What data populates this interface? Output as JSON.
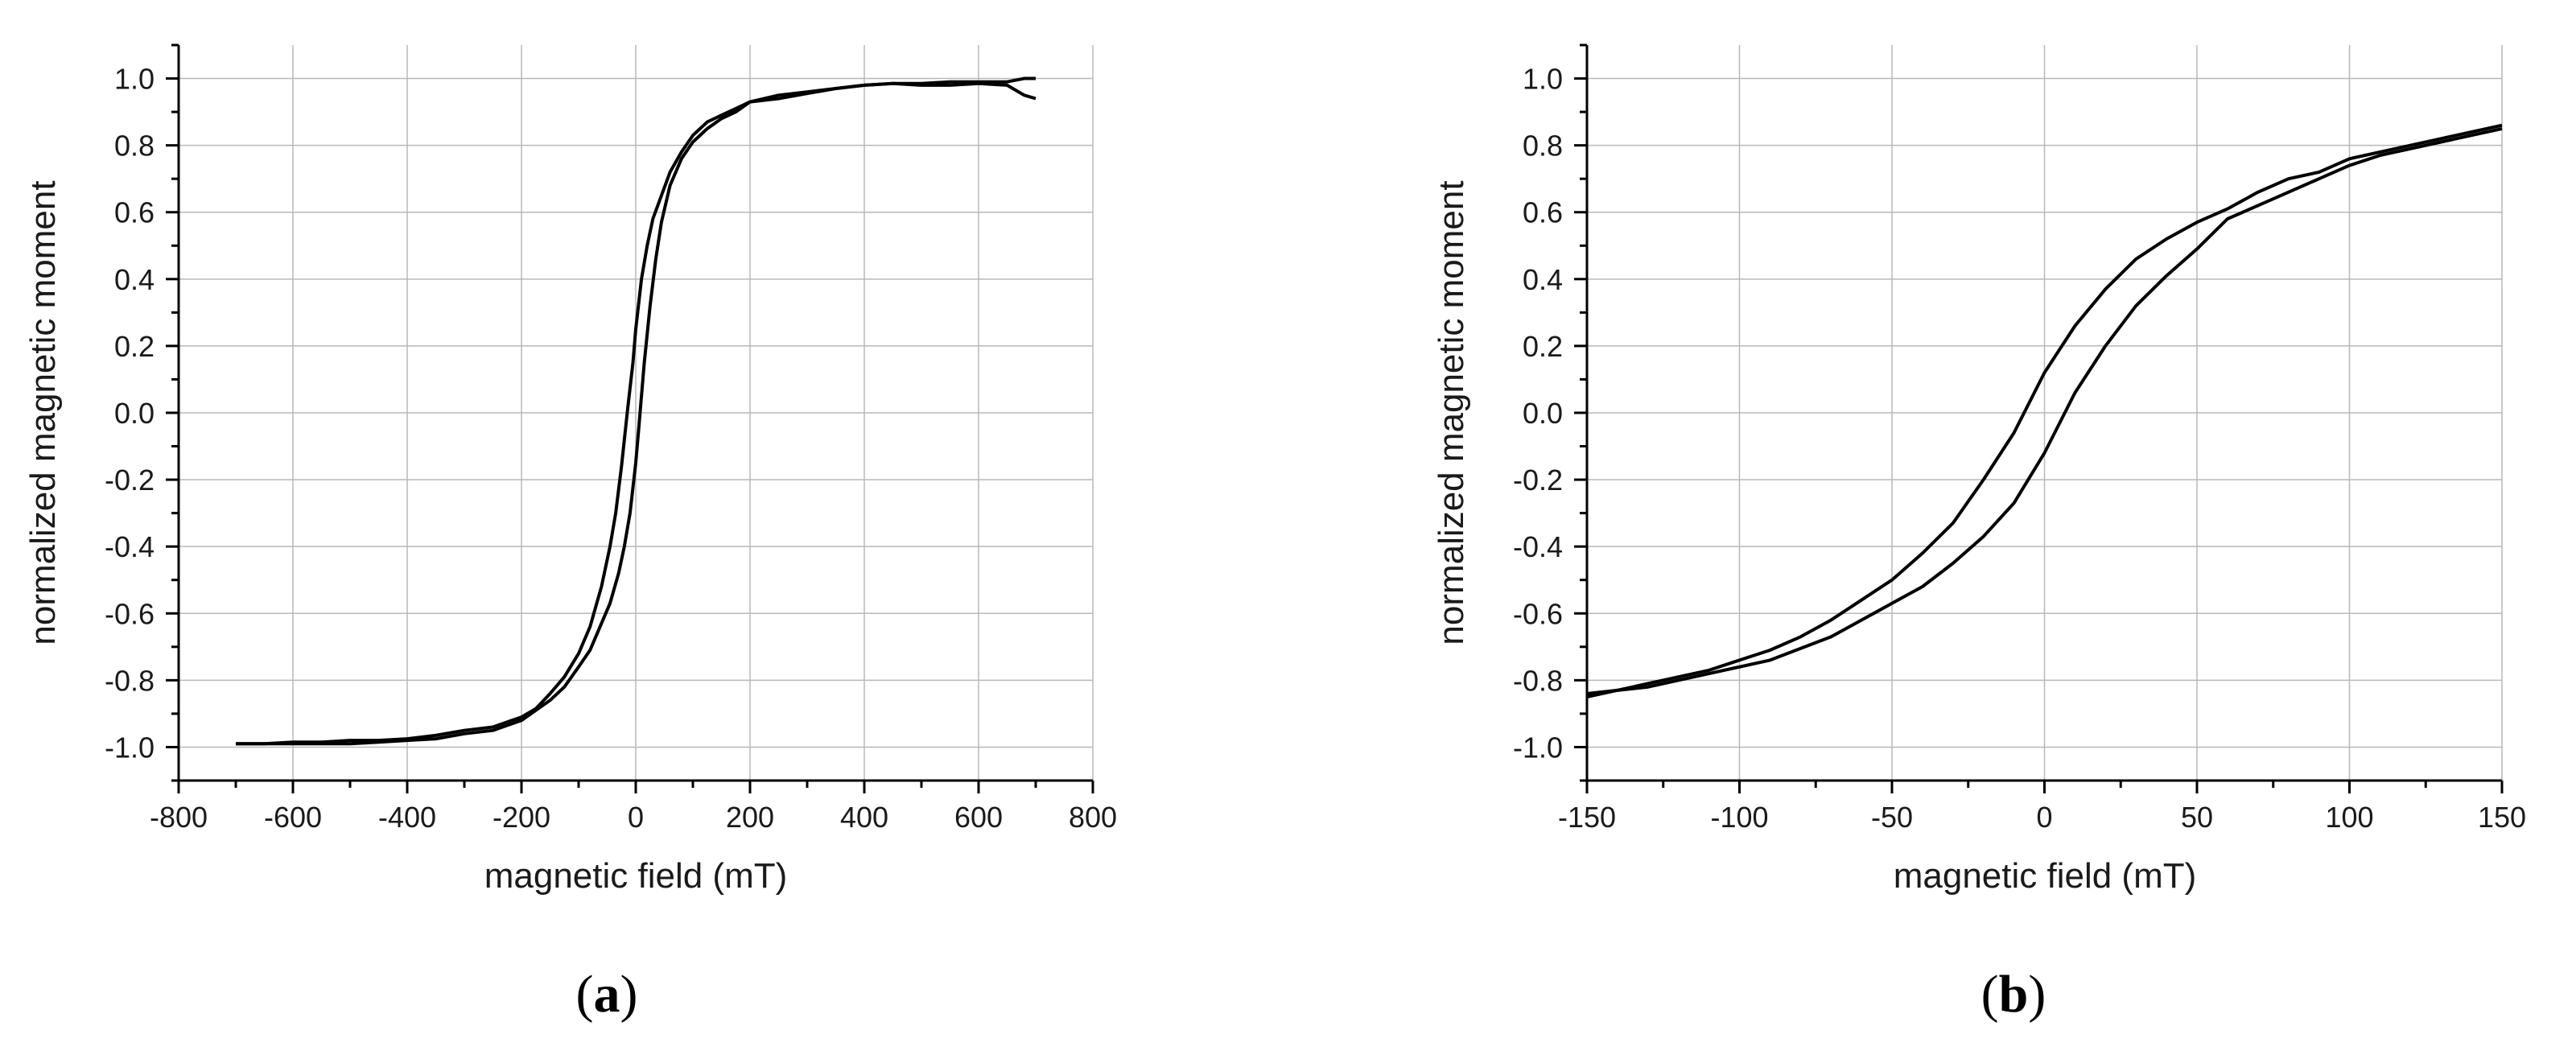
{
  "chart_data": [
    {
      "type": "line",
      "panel_label": "(a)",
      "panel_letter": "a",
      "xlabel": "magnetic field (mT)",
      "ylabel": "normalized magnetic moment",
      "xlim": [
        -800,
        800
      ],
      "ylim": [
        -1.1,
        1.1
      ],
      "grid": true,
      "x_ticks": [
        -800,
        -600,
        -400,
        -200,
        0,
        200,
        400,
        600,
        800
      ],
      "x_tick_labels": [
        "-800",
        "-600",
        "-400",
        "-200",
        "0",
        "200",
        "400",
        "600",
        "800"
      ],
      "y_ticks": [
        1.0,
        0.8,
        0.6,
        0.4,
        0.2,
        0.0,
        -0.2,
        -0.4,
        -0.6,
        -0.8,
        -1.0
      ],
      "y_tick_labels": [
        "1.0",
        "0.8",
        "0.6",
        "0.4",
        "0.2",
        "0.0",
        "-0.2",
        "-0.4",
        "-0.6",
        "-0.8",
        "-1.0"
      ],
      "series": [
        {
          "x": [
            -700,
            -650,
            -600,
            -550,
            -500,
            -450,
            -400,
            -350,
            -300,
            -250,
            -200,
            -175,
            -150,
            -125,
            -100,
            -80,
            -60,
            -45,
            -35,
            -25,
            -15,
            -5,
            0,
            10,
            20,
            30,
            45,
            60,
            80,
            100,
            125,
            150,
            175,
            200,
            250,
            300,
            350,
            400,
            450,
            500,
            550,
            600,
            650,
            680,
            700
          ],
          "y": [
            -0.99,
            -0.99,
            -0.985,
            -0.985,
            -0.98,
            -0.98,
            -0.975,
            -0.965,
            -0.95,
            -0.94,
            -0.91,
            -0.885,
            -0.84,
            -0.79,
            -0.72,
            -0.64,
            -0.52,
            -0.4,
            -0.3,
            -0.16,
            0.0,
            0.15,
            0.25,
            0.4,
            0.5,
            0.58,
            0.65,
            0.72,
            0.78,
            0.83,
            0.87,
            0.89,
            0.91,
            0.93,
            0.95,
            0.96,
            0.97,
            0.98,
            0.985,
            0.985,
            0.99,
            0.99,
            0.99,
            1.0,
            1.0
          ]
        },
        {
          "x": [
            700,
            680,
            650,
            600,
            550,
            500,
            450,
            400,
            350,
            300,
            250,
            200,
            175,
            150,
            125,
            100,
            80,
            60,
            45,
            35,
            25,
            15,
            5,
            0,
            -10,
            -20,
            -30,
            -45,
            -60,
            -80,
            -100,
            -125,
            -150,
            -175,
            -200,
            -250,
            -300,
            -350,
            -400,
            -450,
            -500,
            -550,
            -600,
            -650,
            -700
          ],
          "y": [
            0.94,
            0.95,
            0.98,
            0.985,
            0.98,
            0.98,
            0.985,
            0.98,
            0.97,
            0.955,
            0.94,
            0.93,
            0.9,
            0.88,
            0.85,
            0.81,
            0.76,
            0.68,
            0.57,
            0.46,
            0.32,
            0.15,
            -0.05,
            -0.15,
            -0.3,
            -0.4,
            -0.48,
            -0.57,
            -0.63,
            -0.71,
            -0.76,
            -0.82,
            -0.86,
            -0.89,
            -0.92,
            -0.95,
            -0.96,
            -0.975,
            -0.98,
            -0.985,
            -0.99,
            -0.99,
            -0.99,
            -0.99,
            -0.99
          ]
        }
      ]
    },
    {
      "type": "line",
      "panel_label": "(b)",
      "panel_letter": "b",
      "xlabel": "magnetic field (mT)",
      "ylabel": "normalized magnetic moment",
      "xlim": [
        -150,
        150
      ],
      "ylim": [
        -1.1,
        1.1
      ],
      "grid": true,
      "x_ticks": [
        -150,
        -100,
        -50,
        0,
        50,
        100,
        150
      ],
      "x_tick_labels": [
        "-150",
        "-100",
        "-50",
        "0",
        "50",
        "100",
        "150"
      ],
      "y_ticks": [
        1.0,
        0.8,
        0.6,
        0.4,
        0.2,
        0.0,
        -0.2,
        -0.4,
        -0.6,
        -0.8,
        -1.0
      ],
      "y_tick_labels": [
        "1.0",
        "0.8",
        "0.6",
        "0.4",
        "0.2",
        "0.0",
        "-0.2",
        "-0.4",
        "-0.6",
        "-0.8",
        "-1.0"
      ],
      "series": [
        {
          "x": [
            -150,
            -130,
            -110,
            -90,
            -70,
            -50,
            -40,
            -30,
            -20,
            -10,
            0,
            10,
            20,
            30,
            40,
            50,
            60,
            70,
            80,
            90,
            100,
            110,
            120,
            130,
            140,
            150
          ],
          "y": [
            -0.84,
            -0.82,
            -0.78,
            -0.74,
            -0.67,
            -0.57,
            -0.52,
            -0.45,
            -0.37,
            -0.27,
            -0.12,
            0.06,
            0.2,
            0.32,
            0.41,
            0.49,
            0.58,
            0.62,
            0.66,
            0.7,
            0.74,
            0.77,
            0.79,
            0.81,
            0.83,
            0.85
          ]
        },
        {
          "x": [
            150,
            130,
            110,
            100,
            90,
            80,
            70,
            60,
            50,
            40,
            30,
            20,
            10,
            0,
            -10,
            -20,
            -30,
            -40,
            -50,
            -60,
            -70,
            -80,
            -90,
            -100,
            -110,
            -130,
            -150
          ],
          "y": [
            0.86,
            0.82,
            0.78,
            0.76,
            0.72,
            0.7,
            0.66,
            0.61,
            0.57,
            0.52,
            0.46,
            0.37,
            0.26,
            0.12,
            -0.06,
            -0.2,
            -0.33,
            -0.42,
            -0.5,
            -0.56,
            -0.62,
            -0.67,
            -0.71,
            -0.74,
            -0.77,
            -0.81,
            -0.85
          ]
        }
      ]
    }
  ]
}
